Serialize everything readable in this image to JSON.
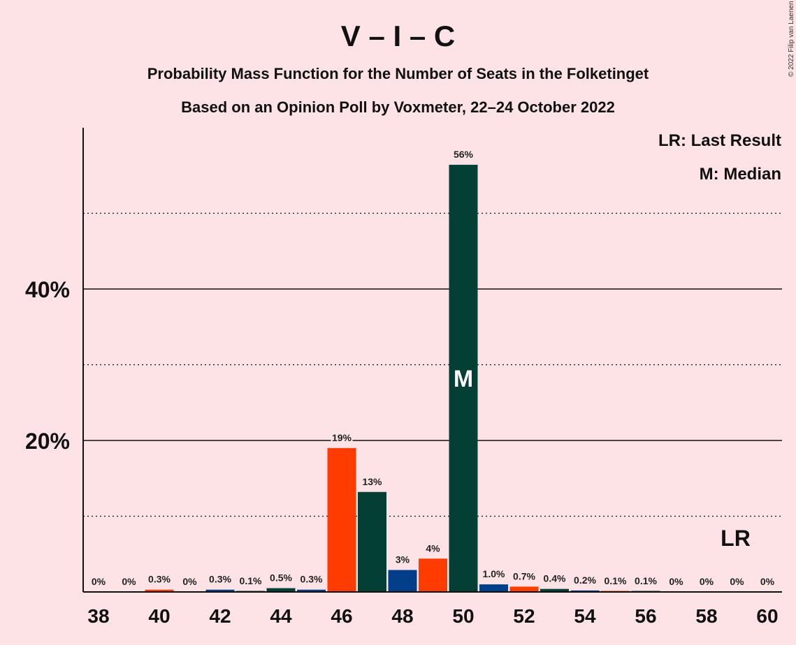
{
  "chart_data": {
    "type": "bar",
    "title": "V – I – C",
    "subtitle1": "Probability Mass Function for the Number of Seats in the Folketinget",
    "subtitle2": "Based on an Opinion Poll by Voxmeter, 22–24 October 2022",
    "copyright": "© 2022 Filip van Laenen",
    "legend": [
      "LR: Last Result",
      "M: Median"
    ],
    "median_marker": "M",
    "last_result_marker": "LR",
    "last_result_seat": 59,
    "median_seat": 50,
    "ylim": [
      0,
      61.5
    ],
    "yticks": [
      {
        "value": 20,
        "label": "20%"
      },
      {
        "value": 40,
        "label": "40%"
      }
    ],
    "minor_gridlines": [
      10,
      30,
      50
    ],
    "xticks": [
      "38",
      "40",
      "42",
      "44",
      "46",
      "48",
      "50",
      "52",
      "54",
      "56",
      "58",
      "60"
    ],
    "colors": {
      "V": "#023e8a",
      "I": "#043f35",
      "C": "#ff3c00"
    },
    "bars": [
      {
        "seat": 38,
        "value": 0,
        "label": "0%",
        "color": "#043f35"
      },
      {
        "seat": 39,
        "value": 0,
        "label": "0%",
        "color": "#043f35"
      },
      {
        "seat": 40,
        "value": 0.3,
        "label": "0.3%",
        "color": "#ff3c00"
      },
      {
        "seat": 41,
        "value": 0,
        "label": "0%",
        "color": "#043f35"
      },
      {
        "seat": 42,
        "value": 0.3,
        "label": "0.3%",
        "color": "#023e8a"
      },
      {
        "seat": 43,
        "value": 0.1,
        "label": "0.1%",
        "color": "#043f35"
      },
      {
        "seat": 44,
        "value": 0.5,
        "label": "0.5%",
        "color": "#043f35"
      },
      {
        "seat": 45,
        "value": 0.3,
        "label": "0.3%",
        "color": "#023e8a"
      },
      {
        "seat": 46,
        "value": 19,
        "label": "19%",
        "color": "#ff3c00"
      },
      {
        "seat": 47,
        "value": 13.2,
        "label": "13%",
        "color": "#043f35"
      },
      {
        "seat": 48,
        "value": 2.9,
        "label": "3%",
        "color": "#023e8a"
      },
      {
        "seat": 49,
        "value": 4.4,
        "label": "4%",
        "color": "#ff3c00"
      },
      {
        "seat": 50,
        "value": 56.4,
        "label": "56%",
        "color": "#043f35"
      },
      {
        "seat": 51,
        "value": 1.0,
        "label": "1.0%",
        "color": "#023e8a"
      },
      {
        "seat": 52,
        "value": 0.7,
        "label": "0.7%",
        "color": "#ff3c00"
      },
      {
        "seat": 53,
        "value": 0.4,
        "label": "0.4%",
        "color": "#043f35"
      },
      {
        "seat": 54,
        "value": 0.2,
        "label": "0.2%",
        "color": "#023e8a"
      },
      {
        "seat": 55,
        "value": 0.1,
        "label": "0.1%",
        "color": "#ff3c00"
      },
      {
        "seat": 56,
        "value": 0.1,
        "label": "0.1%",
        "color": "#043f35"
      },
      {
        "seat": 57,
        "value": 0,
        "label": "0%",
        "color": "#023e8a"
      },
      {
        "seat": 58,
        "value": 0,
        "label": "0%",
        "color": "#ff3c00"
      },
      {
        "seat": 59,
        "value": 0,
        "label": "0%",
        "color": "#043f35"
      },
      {
        "seat": 60,
        "value": 0,
        "label": "0%",
        "color": "#023e8a"
      }
    ]
  }
}
